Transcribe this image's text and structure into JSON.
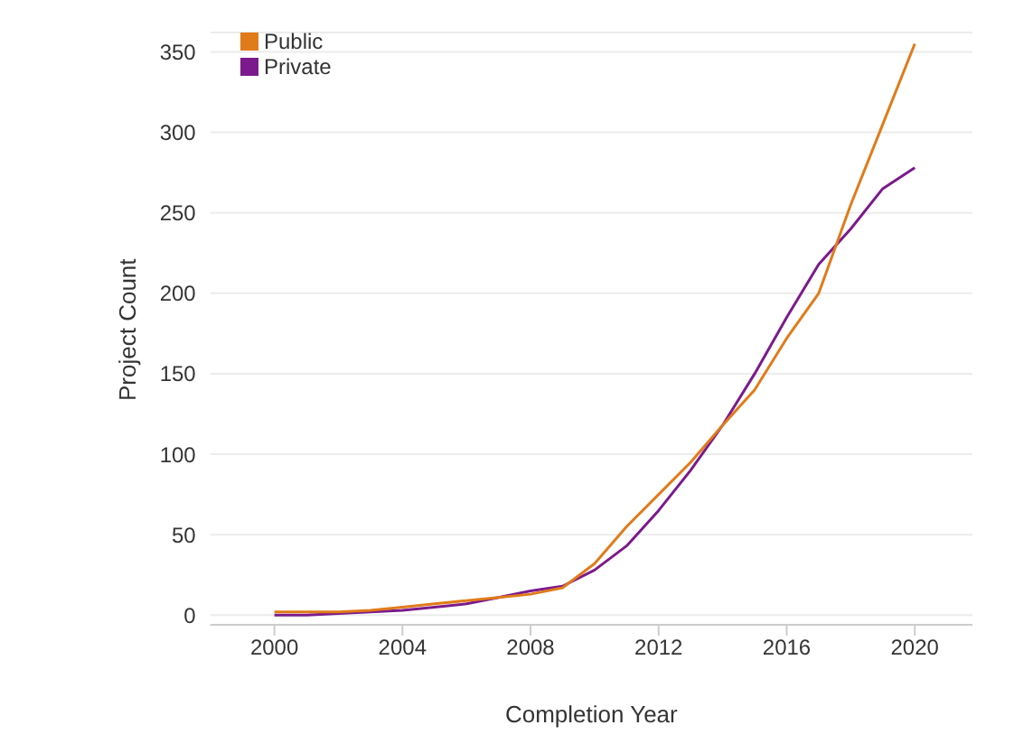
{
  "chart_data": {
    "type": "line",
    "xlabel": "Completion Year",
    "ylabel": "Project Count",
    "x": [
      2000,
      2001,
      2002,
      2003,
      2004,
      2005,
      2006,
      2007,
      2008,
      2009,
      2010,
      2011,
      2012,
      2013,
      2014,
      2015,
      2016,
      2017,
      2018,
      2019,
      2020
    ],
    "series": [
      {
        "name": "Public",
        "color": "#e07b1a",
        "values": [
          2,
          2,
          2,
          3,
          5,
          7,
          9,
          11,
          13,
          17,
          32,
          55,
          75,
          95,
          118,
          140,
          172,
          200,
          255,
          305,
          355
        ]
      },
      {
        "name": "Private",
        "color": "#7b1a8c",
        "values": [
          0,
          0,
          1,
          2,
          3,
          5,
          7,
          11,
          15,
          18,
          28,
          43,
          65,
          90,
          118,
          150,
          185,
          218,
          240,
          265,
          278
        ]
      }
    ],
    "xlim": [
      1998,
      2021.8
    ],
    "xticks": [
      2000,
      2004,
      2008,
      2012,
      2016,
      2020
    ],
    "ylim": [
      -6,
      362
    ],
    "yticks": [
      0,
      50,
      100,
      150,
      200,
      250,
      300,
      350
    ],
    "grid": "y",
    "legend": "top left",
    "marker": "none",
    "line_style": "solid"
  }
}
